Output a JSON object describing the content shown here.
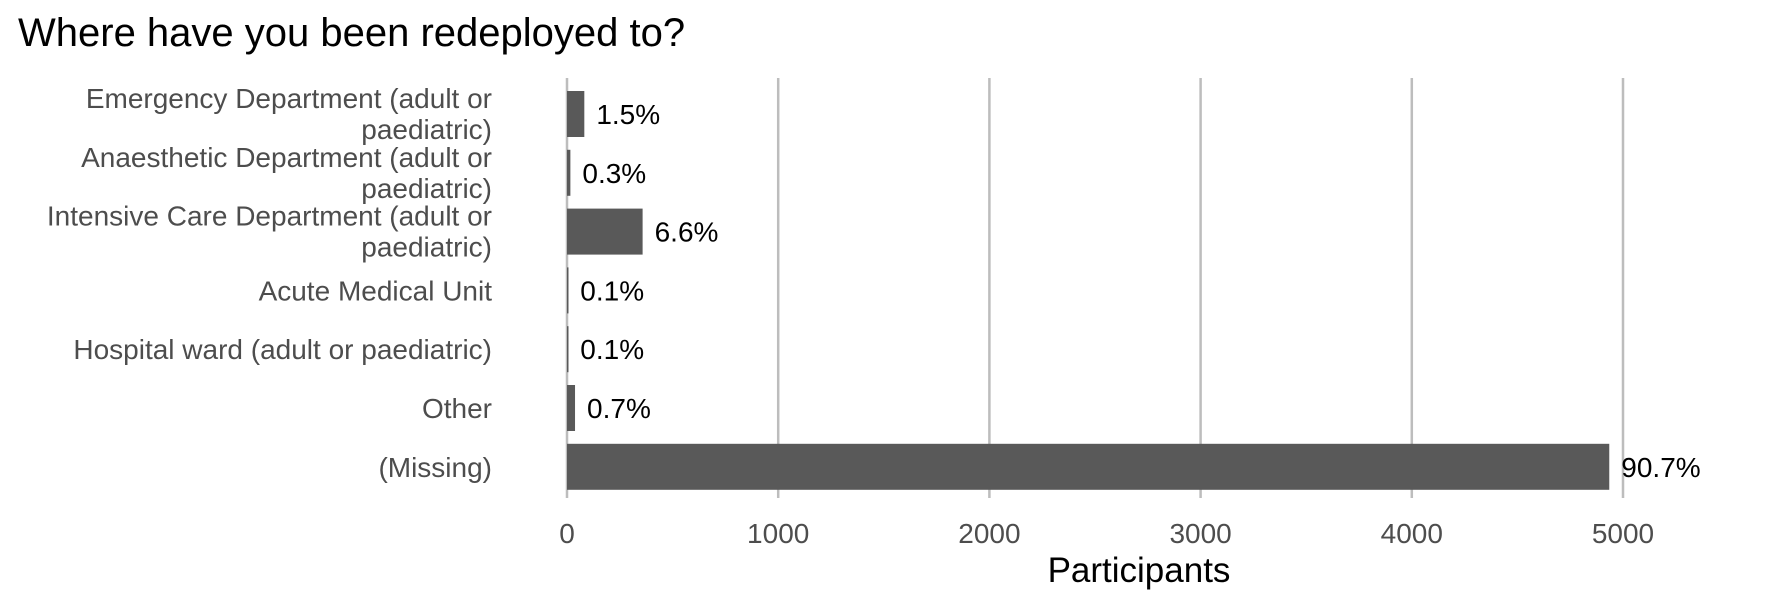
{
  "chart_data": {
    "type": "bar",
    "orientation": "horizontal",
    "title": "Where have you been redeployed to?",
    "xlabel": "Participants",
    "ylabel": "",
    "xlim": [
      0,
      5000
    ],
    "xticks": [
      0,
      1000,
      2000,
      3000,
      4000,
      5000
    ],
    "grid": "vertical major gridlines",
    "legend": "none",
    "categories": [
      [
        "Emergency Department (adult or",
        "paediatric)"
      ],
      [
        "Anaesthetic Department (adult or",
        "paediatric)"
      ],
      [
        "Intensive Care Department (adult or",
        "paediatric)"
      ],
      [
        "Acute Medical Unit"
      ],
      [
        "Hospital ward (adult or paediatric)"
      ],
      [
        "Other"
      ],
      [
        "(Missing)"
      ]
    ],
    "values": [
      82,
      16,
      358,
      6,
      6,
      38,
      4935
    ],
    "data_labels": [
      "1.5%",
      "0.3%",
      "6.6%",
      "0.1%",
      "0.1%",
      "0.7%",
      "90.7%"
    ],
    "colors": {
      "bar": "#595959",
      "grid": "#bdbdbd",
      "tick_label": "#4d4d4d",
      "text": "#000000"
    }
  }
}
